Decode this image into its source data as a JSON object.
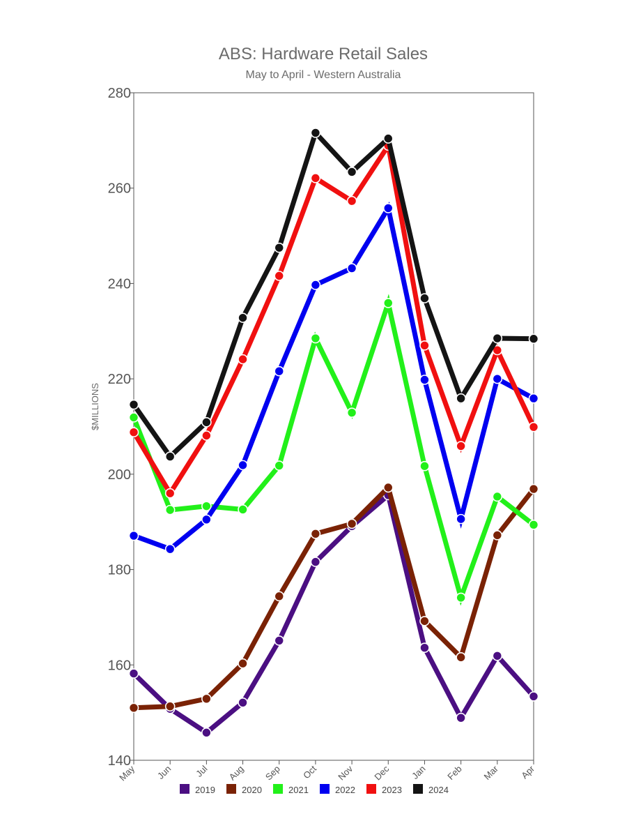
{
  "chart_data": {
    "type": "line",
    "title": "ABS: Hardware Retail Sales",
    "subtitle": "May to April - Western Australia",
    "xlabel": "",
    "ylabel": "$MILLIONS",
    "ylim": [
      140,
      280
    ],
    "yticks": [
      140,
      160,
      180,
      200,
      220,
      240,
      260,
      280
    ],
    "categories": [
      "May",
      "Jun",
      "Jul",
      "Aug",
      "Sep",
      "Oct",
      "Nov",
      "Dec",
      "Jan",
      "Feb",
      "Mar",
      "Apr"
    ],
    "grid": false,
    "legend_position": "bottom",
    "series": [
      {
        "name": "2019",
        "color": "#4b0f82",
        "values": [
          158.2,
          150.8,
          145.8,
          152.1,
          165.1,
          181.6,
          189.1,
          195.6,
          163.6,
          148.9,
          161.9,
          153.4
        ]
      },
      {
        "name": "2020",
        "color": "#7a2205",
        "values": [
          151.0,
          151.3,
          152.9,
          160.3,
          174.4,
          187.5,
          189.6,
          197.2,
          169.2,
          161.6,
          187.2,
          196.9
        ]
      },
      {
        "name": "2021",
        "color": "#22f01a",
        "values": [
          211.9,
          192.5,
          193.3,
          192.6,
          201.8,
          228.5,
          212.9,
          235.9,
          201.7,
          174.1,
          195.3,
          189.4
        ]
      },
      {
        "name": "2022",
        "color": "#0000f0",
        "values": [
          187.1,
          184.3,
          190.5,
          201.9,
          221.6,
          239.7,
          243.2,
          255.8,
          219.8,
          190.6,
          220.0,
          215.9
        ]
      },
      {
        "name": "2023",
        "color": "#f01010",
        "values": [
          208.8,
          196.0,
          208.1,
          224.1,
          241.6,
          262.1,
          257.3,
          268.9,
          227.0,
          205.9,
          226.0,
          209.9
        ]
      },
      {
        "name": "2024",
        "color": "#141414",
        "values": [
          214.6,
          203.7,
          210.9,
          232.8,
          247.5,
          271.6,
          263.4,
          270.4,
          236.9,
          215.9,
          228.5,
          228.4
        ]
      }
    ]
  }
}
